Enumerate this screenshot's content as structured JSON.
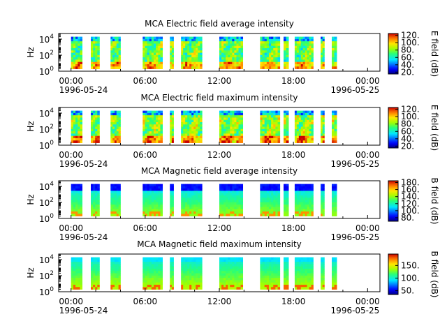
{
  "chart_data": [
    {
      "type": "heatmap",
      "title": "MCA  Electric field average intensity",
      "ylabel": "Hz",
      "colorbar_label": "E field (dB)",
      "colorbar_range": [
        15,
        125
      ],
      "colorbar_ticks": [
        "20.",
        "40.",
        "60.",
        "80.",
        "100.",
        "120."
      ],
      "colorbar_tick_values": [
        20,
        40,
        60,
        80,
        100,
        120
      ],
      "y_ticks": [
        {
          "base": "10",
          "exp": "0"
        },
        {
          "base": "10",
          "exp": "2"
        },
        {
          "base": "10",
          "exp": "4"
        }
      ],
      "x_ticks": [
        "00:00",
        "06:00",
        "12:00",
        "18:00",
        "00:00"
      ],
      "x_tick_hours": [
        0,
        6,
        12,
        18,
        24
      ],
      "date_labels": [
        "1996-05-24",
        "1996-05-25"
      ],
      "x_range_hours": [
        -1,
        25
      ],
      "y_range_log10": [
        0,
        4.7
      ],
      "y_data_log10": [
        0.3,
        4.3
      ],
      "profile": "electric",
      "intensity_base": 0.55
    },
    {
      "type": "heatmap",
      "title": "MCA  Electric field maximum intensity",
      "ylabel": "Hz",
      "colorbar_label": "E field (dB)",
      "colorbar_range": [
        15,
        125
      ],
      "colorbar_ticks": [
        "20.",
        "40.",
        "60.",
        "80.",
        "100.",
        "120."
      ],
      "colorbar_tick_values": [
        20,
        40,
        60,
        80,
        100,
        120
      ],
      "y_ticks": [
        {
          "base": "10",
          "exp": "0"
        },
        {
          "base": "10",
          "exp": "2"
        },
        {
          "base": "10",
          "exp": "4"
        }
      ],
      "x_ticks": [
        "00:00",
        "06:00",
        "12:00",
        "18:00",
        "00:00"
      ],
      "x_tick_hours": [
        0,
        6,
        12,
        18,
        24
      ],
      "date_labels": [
        "1996-05-24",
        "1996-05-25"
      ],
      "x_range_hours": [
        -1,
        25
      ],
      "y_range_log10": [
        0,
        4.7
      ],
      "y_data_log10": [
        0.3,
        4.3
      ],
      "profile": "electric",
      "intensity_base": 0.6
    },
    {
      "type": "heatmap",
      "title": "MCA  Magnetic field average intensity",
      "ylabel": "Hz",
      "colorbar_label": "B field (dB)",
      "colorbar_range": [
        70,
        185
      ],
      "colorbar_ticks": [
        "80.",
        "100.",
        "120.",
        "140.",
        "160.",
        "180."
      ],
      "colorbar_tick_values": [
        80,
        100,
        120,
        140,
        160,
        180
      ],
      "y_ticks": [
        {
          "base": "10",
          "exp": "0"
        },
        {
          "base": "10",
          "exp": "2"
        },
        {
          "base": "10",
          "exp": "4"
        }
      ],
      "x_ticks": [
        "00:00",
        "06:00",
        "12:00",
        "18:00",
        "00:00"
      ],
      "x_tick_hours": [
        0,
        6,
        12,
        18,
        24
      ],
      "date_labels": [
        "1996-05-24",
        "1996-05-25"
      ],
      "x_range_hours": [
        -1,
        25
      ],
      "y_range_log10": [
        0,
        4.7
      ],
      "y_data_log10": [
        0.3,
        4.3
      ],
      "profile": "magnetic",
      "intensity_base": 0.45
    },
    {
      "type": "heatmap",
      "title": "MCA  Magnetic field maximum intensity",
      "ylabel": "Hz",
      "colorbar_label": "B field (dB)",
      "colorbar_range": [
        35,
        195
      ],
      "colorbar_ticks": [
        "50.",
        "100.",
        "150."
      ],
      "colorbar_tick_values": [
        50,
        100,
        150
      ],
      "y_ticks": [
        {
          "base": "10",
          "exp": "0"
        },
        {
          "base": "10",
          "exp": "2"
        },
        {
          "base": "10",
          "exp": "4"
        }
      ],
      "x_ticks": [
        "00:00",
        "06:00",
        "12:00",
        "18:00",
        "00:00"
      ],
      "x_tick_hours": [
        0,
        6,
        12,
        18,
        24
      ],
      "date_labels": [
        "1996-05-24",
        "1996-05-25"
      ],
      "x_range_hours": [
        -1,
        25
      ],
      "y_range_log10": [
        0,
        4.7
      ],
      "y_data_log10": [
        0.3,
        4.3
      ],
      "profile": "magnetic-max",
      "intensity_base": 0.5
    }
  ],
  "data_intervals_hours": [
    [
      0.0,
      0.9
    ],
    [
      1.6,
      2.3
    ],
    [
      3.2,
      4.0
    ],
    [
      5.8,
      7.4
    ],
    [
      8.0,
      8.3
    ],
    [
      8.9,
      10.6
    ],
    [
      12.0,
      13.9
    ],
    [
      15.3,
      16.9
    ],
    [
      17.2,
      17.6
    ],
    [
      18.1,
      19.6
    ],
    [
      20.2,
      20.5
    ],
    [
      21.1,
      21.5
    ]
  ]
}
